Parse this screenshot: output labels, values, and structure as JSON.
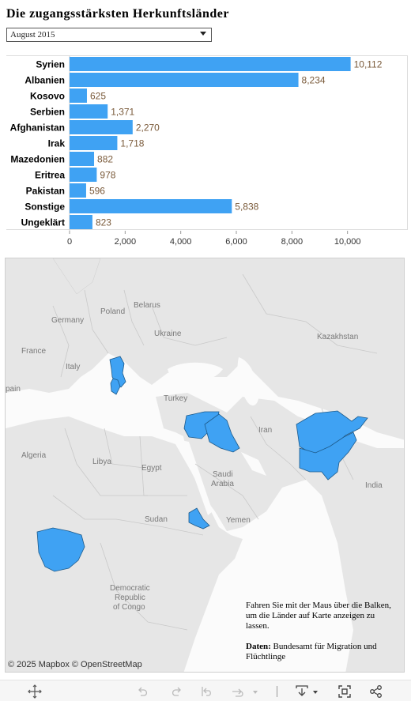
{
  "title": "Die zugangsstärksten Herkunftsländer",
  "filter": {
    "selected": "August 2015"
  },
  "chart_data": {
    "type": "bar",
    "orientation": "horizontal",
    "categories": [
      "Syrien",
      "Albanien",
      "Kosovo",
      "Serbien",
      "Afghanistan",
      "Irak",
      "Mazedonien",
      "Eritrea",
      "Pakistan",
      "Sonstige",
      "Ungeklärt"
    ],
    "values": [
      10112,
      8234,
      625,
      1371,
      2270,
      1718,
      882,
      978,
      596,
      5838,
      823
    ],
    "value_labels": [
      "10,112",
      "8,234",
      "625",
      "1,371",
      "2,270",
      "1,718",
      "882",
      "978",
      "596",
      "5,838",
      "823"
    ],
    "xlim": [
      0,
      12000
    ],
    "xticks": [
      0,
      2000,
      4000,
      6000,
      8000,
      10000
    ],
    "xtick_labels": [
      "0",
      "2,000",
      "4,000",
      "6,000",
      "8,000",
      "10,000"
    ],
    "grid": false,
    "bar_color": "#3fa2f3",
    "label_color": "#7a5a3a"
  },
  "map": {
    "highlight_color": "#3fa2f3",
    "labels": {
      "belarus": "Belarus",
      "poland": "Poland",
      "germany": "Germany",
      "ukraine": "Ukraine",
      "france": "France",
      "italy": "Italy",
      "spain": "pain",
      "kazakhstan": "Kazakhstan",
      "turkey": "Turkey",
      "iran": "Iran",
      "algeria": "Algeria",
      "libya": "Libya",
      "egypt": "Egypt",
      "saudi1": "Saudi",
      "saudi2": "Arabia",
      "india": "India",
      "sudan": "Sudan",
      "yemen": "Yemen",
      "drc1": "Democratic",
      "drc2": "Republic",
      "drc3": "of Congo"
    },
    "attribution": "© 2025 Mapbox  © OpenStreetMap"
  },
  "note": {
    "hover_text": "Fahren Sie mit der Maus über die Balken, um die Länder auf Karte anzeigen zu lassen.",
    "source_label": "Daten:",
    "source_text": " Bundesamt für Migration und Flüchtlinge"
  },
  "toolbar": {
    "icons": [
      "move-icon",
      "undo-icon",
      "redo-icon",
      "revert-icon",
      "refresh-icon",
      "download-icon",
      "fullscreen-icon",
      "share-icon"
    ]
  }
}
